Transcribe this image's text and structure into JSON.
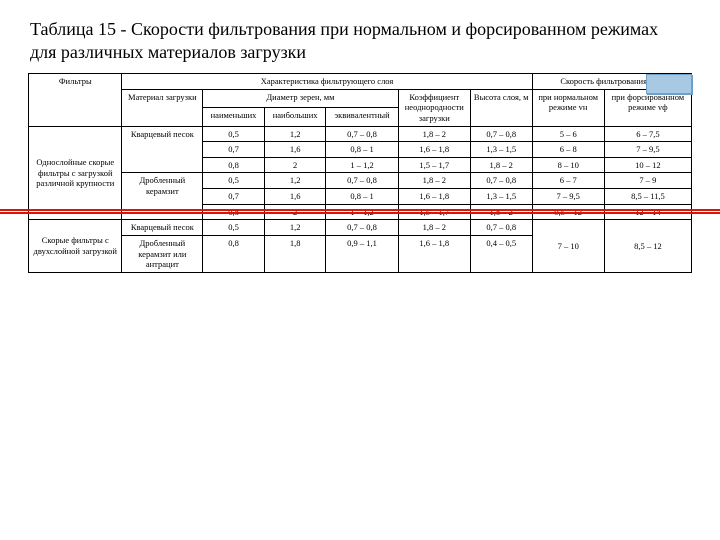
{
  "title": "Таблица 15 - Скорости фильтрования при нормальном и форсированном режимах для различных материалов загрузки",
  "headers": {
    "top_char": "Характеристика фильтрующего слоя",
    "top_speed": "Скорость фильтрования, м/ч",
    "filters": "Фильтры",
    "material": "Материал загрузки",
    "diam": "Диаметр зерен, мм",
    "koef": "Коэффициент неоднородности загрузки",
    "height": "Высота слоя, м",
    "d_min": "наименьших",
    "d_max": "наибольших",
    "d_eq": "эквивалентный",
    "vn": "при нормальном режиме vн",
    "vf": "при форсированном режиме vф"
  },
  "filter_types": {
    "single": "Однослойные скорые фильтры с загрузкой различной крупности",
    "double": "Скорые фильтры с двухслойной загрузкой"
  },
  "materials": {
    "quartz": "Кварцевый песок",
    "keramzit": "Дробленный керамзит",
    "keramzit_or_ant": "Дробленный керамзит или антрацит"
  },
  "rows": [
    {
      "d_min": "0,5",
      "d_max": "1,2",
      "d_eq": "0,7 – 0,8",
      "koef": "1,8 – 2",
      "h": "0,7 – 0,8",
      "vn": "5 – 6",
      "vf": "6 – 7,5"
    },
    {
      "d_min": "0,7",
      "d_max": "1,6",
      "d_eq": "0,8 – 1",
      "koef": "1,6 – 1,8",
      "h": "1,3 – 1,5",
      "vn": "6 – 8",
      "vf": "7 – 9,5"
    },
    {
      "d_min": "0,8",
      "d_max": "2",
      "d_eq": "1 – 1,2",
      "koef": "1,5 – 1,7",
      "h": "1,8 – 2",
      "vn": "8 – 10",
      "vf": "10 – 12"
    },
    {
      "d_min": "0,5",
      "d_max": "1,2",
      "d_eq": "0,7 – 0,8",
      "koef": "1,8 – 2",
      "h": "0,7 – 0,8",
      "vn": "6 – 7",
      "vf": "7 – 9"
    },
    {
      "d_min": "0,7",
      "d_max": "1,6",
      "d_eq": "0,8 – 1",
      "koef": "1,6 – 1,8",
      "h": "1,3 – 1,5",
      "vn": "7 – 9,5",
      "vf": "8,5 – 11,5"
    },
    {
      "d_min": "0,8",
      "d_max": "2",
      "d_eq": "1 – 1,2",
      "koef": "1,5 – 1,7",
      "h": "1,8 – 2",
      "vn": "9,5 – 12",
      "vf": "12 – 14"
    },
    {
      "d_min": "0,5",
      "d_max": "1,2",
      "d_eq": "0,7 – 0,8",
      "koef": "1,8 – 2",
      "h": "0,7 – 0,8",
      "vn": "7 – 10",
      "vf": "8,5 – 12"
    },
    {
      "d_min": "0,8",
      "d_max": "1,8",
      "d_eq": "0,9 – 1,1",
      "koef": "1,6 – 1,8",
      "h": "0,4 – 0,5",
      "vn": "",
      "vf": ""
    }
  ],
  "colors": {
    "red": "#d8150a",
    "badge_fill": "#a7c9e4",
    "badge_border": "#6fa0c8"
  }
}
